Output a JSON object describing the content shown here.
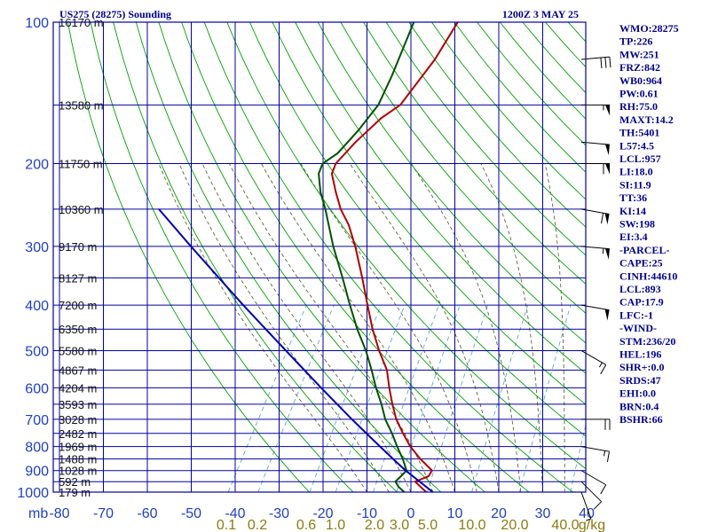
{
  "title_left": "US275 (28275) Sounding",
  "title_right": "1200Z  3 MAY 25",
  "indices": [
    "WMO:28275",
    "TP:226",
    "MW:251",
    "FRZ:842",
    "WB0:964",
    "PW:0.61",
    "RH:75.0",
    "MAXT:14.2",
    "TH:5401",
    "L57:4.5",
    "LCL:957",
    "LI:18.0",
    "SI:11.9",
    "TT:36",
    "KI:14",
    "SW:198",
    "EI:3.4",
    "-PARCEL-",
    "CAPE:25",
    "CINH:44610",
    "LCL:893",
    "CAP:17.9",
    "LFC:-1",
    "-WIND-",
    "STM:236/20",
    "HEL:196",
    "SHR+:0.0",
    "SRDS:47",
    "EHI:0.0",
    "BRN:0.4",
    "BSHR:66"
  ],
  "colors": {
    "grid": "#0000a0",
    "dry_adiabat": "#00a000",
    "moist_adiabat": "#505020",
    "mixing_ratio": "#4aa0d0",
    "temperature": "#b00000",
    "dewpoint": "#005000",
    "parcel": "#0000b0",
    "axis_text": "#1f3fbf",
    "mixing_text": "#8a7a10"
  },
  "chart_data": {
    "type": "line",
    "title": "US275 (28275) Sounding",
    "xlabel": "mb",
    "xlim": [
      -80,
      0
    ],
    "ylim": [
      1000,
      100
    ],
    "yscale": "log",
    "x_ticks": [
      -80,
      -70,
      -60,
      -50,
      -40,
      -30,
      -20,
      -10,
      0,
      10,
      20,
      30,
      40
    ],
    "x_tick_labels": [
      "-80",
      "-70",
      "-60",
      "-50",
      "-40",
      "-30",
      "-20",
      "-10",
      "0",
      "10",
      "20",
      "30",
      "40"
    ],
    "pressure_ticks": [
      1000,
      900,
      800,
      700,
      600,
      500,
      400,
      300,
      200,
      100
    ],
    "height_labels": [
      {
        "p": 1000,
        "label": "179 m"
      },
      {
        "p": 950,
        "label": "592 m"
      },
      {
        "p": 900,
        "label": "1028 m"
      },
      {
        "p": 850,
        "label": "1488 m"
      },
      {
        "p": 800,
        "label": "1969 m"
      },
      {
        "p": 750,
        "label": "2482 m"
      },
      {
        "p": 700,
        "label": "3028 m"
      },
      {
        "p": 650,
        "label": "3593 m"
      },
      {
        "p": 600,
        "label": "4204 m"
      },
      {
        "p": 550,
        "label": "4867 m"
      },
      {
        "p": 500,
        "label": "5580 m"
      },
      {
        "p": 450,
        "label": "6350 m"
      },
      {
        "p": 400,
        "label": "7200 m"
      },
      {
        "p": 350,
        "label": "8127 m"
      },
      {
        "p": 300,
        "label": "9170 m"
      },
      {
        "p": 250,
        "label": "10360 m"
      },
      {
        "p": 200,
        "label": "11750 m"
      },
      {
        "p": 150,
        "label": "13580 m"
      },
      {
        "p": 100,
        "label": "16170 m"
      }
    ],
    "mixing_ratio_labels": [
      "0.1",
      "0.2",
      "0.6",
      "1.0",
      "2.0",
      "3.0",
      "5.0",
      "10.0",
      "20.0",
      "40.0",
      "g/kg"
    ],
    "series": [
      {
        "key": "temperature",
        "pressure": [
          1000,
          975,
          950,
          925,
          900,
          850,
          800,
          750,
          700,
          650,
          600,
          550,
          500,
          450,
          400,
          350,
          300,
          270,
          250,
          230,
          210,
          200,
          180,
          160,
          150,
          120,
          100
        ],
        "values": [
          3.5,
          1.5,
          -0.5,
          1.8,
          1.8,
          -2.5,
          -6.5,
          -10,
          -13.5,
          -16.5,
          -19.5,
          -22.5,
          -27,
          -31.5,
          -36,
          -41,
          -47,
          -51.5,
          -55.5,
          -59,
          -62.5,
          -63,
          -61.5,
          -59,
          -56.5,
          -55,
          -55
        ]
      },
      {
        "key": "dewpoint",
        "pressure": [
          1000,
          975,
          950,
          925,
          900,
          850,
          800,
          750,
          700,
          650,
          600,
          550,
          500,
          450,
          400,
          350,
          300,
          250,
          230,
          210,
          200,
          190,
          170,
          150,
          130,
          100
        ],
        "values": [
          -1.5,
          -3.5,
          -5,
          -4.5,
          -4,
          -6.5,
          -9.5,
          -12.5,
          -16,
          -19,
          -22.5,
          -26,
          -30,
          -35,
          -40,
          -45.5,
          -52,
          -59,
          -62.5,
          -65.5,
          -66,
          -64,
          -62.5,
          -61.5,
          -62.5,
          -65
        ]
      },
      {
        "key": "parcel",
        "pressure": [
          1000,
          900,
          850,
          800,
          700,
          600,
          500,
          400,
          300,
          250
        ],
        "values": [
          5.0,
          -4.2,
          -8.7,
          -13.4,
          -23.6,
          -35.0,
          -48.2,
          -64.3,
          -84.4,
          -96.9
        ]
      }
    ],
    "wind_barbs": [
      {
        "p": 1000,
        "dir": 200,
        "speed": 5
      },
      {
        "p": 950,
        "dir": 225,
        "speed": 10
      },
      {
        "p": 900,
        "dir": 240,
        "speed": 10
      },
      {
        "p": 800,
        "dir": 260,
        "speed": 15
      },
      {
        "p": 700,
        "dir": 270,
        "speed": 20
      },
      {
        "p": 500,
        "dir": 240,
        "speed": 15
      },
      {
        "p": 400,
        "dir": 260,
        "speed": 50
      },
      {
        "p": 300,
        "dir": 265,
        "speed": 55
      },
      {
        "p": 250,
        "dir": 260,
        "speed": 60
      },
      {
        "p": 200,
        "dir": 270,
        "speed": 60
      },
      {
        "p": 180,
        "dir": 265,
        "speed": 50
      },
      {
        "p": 150,
        "dir": 270,
        "speed": 55
      },
      {
        "p": 120,
        "dir": 275,
        "speed": 30
      }
    ]
  }
}
